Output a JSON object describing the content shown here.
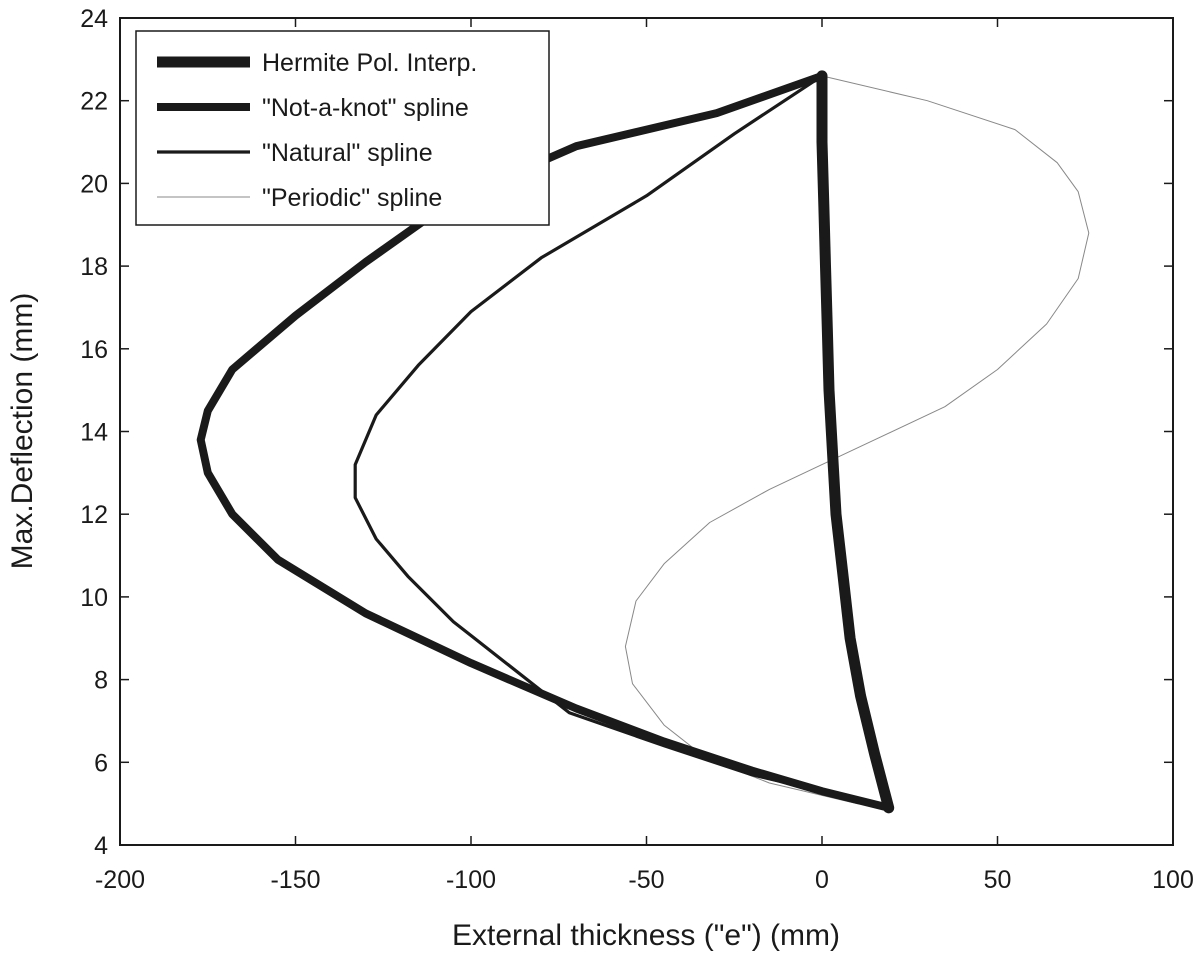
{
  "chart_data": {
    "type": "line",
    "title": "",
    "xlabel": "External thickness (\"e\") (mm)",
    "ylabel": "Max.Deflection (mm)",
    "xlim": [
      -200,
      100
    ],
    "ylim": [
      4,
      24
    ],
    "xticks": [
      -200,
      -150,
      -100,
      -50,
      0,
      50,
      100
    ],
    "yticks": [
      4,
      6,
      8,
      10,
      12,
      14,
      16,
      18,
      20,
      22,
      24
    ],
    "grid": false,
    "legend_position": "top-left",
    "series": [
      {
        "name": "Hermite Pol. Interp.",
        "color": "#1a1a1a",
        "weight": "extra-heavy",
        "points": [
          [
            19,
            4.9
          ],
          [
            15,
            6.2
          ],
          [
            11,
            7.6
          ],
          [
            8,
            9.0
          ],
          [
            6,
            10.5
          ],
          [
            4,
            12.0
          ],
          [
            3,
            13.5
          ],
          [
            2,
            15.0
          ],
          [
            1.5,
            16.5
          ],
          [
            1,
            18.0
          ],
          [
            0.5,
            19.5
          ],
          [
            0,
            21.0
          ],
          [
            0,
            22.6
          ]
        ]
      },
      {
        "name": "\"Not-a-knot\" spline",
        "color": "#1a1a1a",
        "weight": "heavy",
        "points": [
          [
            0,
            22.6
          ],
          [
            -30,
            21.7
          ],
          [
            -70,
            20.9
          ],
          [
            -105,
            19.6
          ],
          [
            -130,
            18.1
          ],
          [
            -150,
            16.8
          ],
          [
            -168,
            15.5
          ],
          [
            -175,
            14.5
          ],
          [
            -177,
            13.8
          ],
          [
            -175,
            13.0
          ],
          [
            -168,
            12.0
          ],
          [
            -155,
            10.9
          ],
          [
            -130,
            9.6
          ],
          [
            -100,
            8.4
          ],
          [
            -70,
            7.3
          ],
          [
            -45,
            6.5
          ],
          [
            -20,
            5.8
          ],
          [
            0,
            5.3
          ],
          [
            19,
            4.9
          ]
        ]
      },
      {
        "name": "\"Natural\" spline",
        "color": "#1a1a1a",
        "weight": "medium",
        "points": [
          [
            0,
            22.6
          ],
          [
            -25,
            21.2
          ],
          [
            -50,
            19.7
          ],
          [
            -80,
            18.2
          ],
          [
            -100,
            16.9
          ],
          [
            -115,
            15.6
          ],
          [
            -127,
            14.4
          ],
          [
            -133,
            13.2
          ],
          [
            -133,
            12.4
          ],
          [
            -127,
            11.4
          ],
          [
            -118,
            10.5
          ],
          [
            -105,
            9.4
          ],
          [
            -90,
            8.4
          ],
          [
            -72,
            7.2
          ],
          [
            -45,
            6.4
          ],
          [
            -20,
            5.7
          ],
          [
            0,
            5.3
          ],
          [
            19,
            4.9
          ]
        ]
      },
      {
        "name": "\"Periodic\" spline",
        "color": "#888888",
        "weight": "hairline",
        "points": [
          [
            0,
            22.6
          ],
          [
            30,
            22.0
          ],
          [
            55,
            21.3
          ],
          [
            67,
            20.5
          ],
          [
            73,
            19.8
          ],
          [
            76,
            18.8
          ],
          [
            73,
            17.7
          ],
          [
            64,
            16.6
          ],
          [
            50,
            15.5
          ],
          [
            35,
            14.6
          ],
          [
            15,
            13.8
          ],
          [
            0,
            13.2
          ],
          [
            -15,
            12.6
          ],
          [
            -32,
            11.8
          ],
          [
            -45,
            10.8
          ],
          [
            -53,
            9.9
          ],
          [
            -56,
            8.8
          ],
          [
            -54,
            7.9
          ],
          [
            -45,
            6.9
          ],
          [
            -33,
            6.1
          ],
          [
            -15,
            5.5
          ],
          [
            0,
            5.2
          ],
          [
            10,
            5.0
          ],
          [
            19,
            4.9
          ]
        ]
      }
    ]
  }
}
